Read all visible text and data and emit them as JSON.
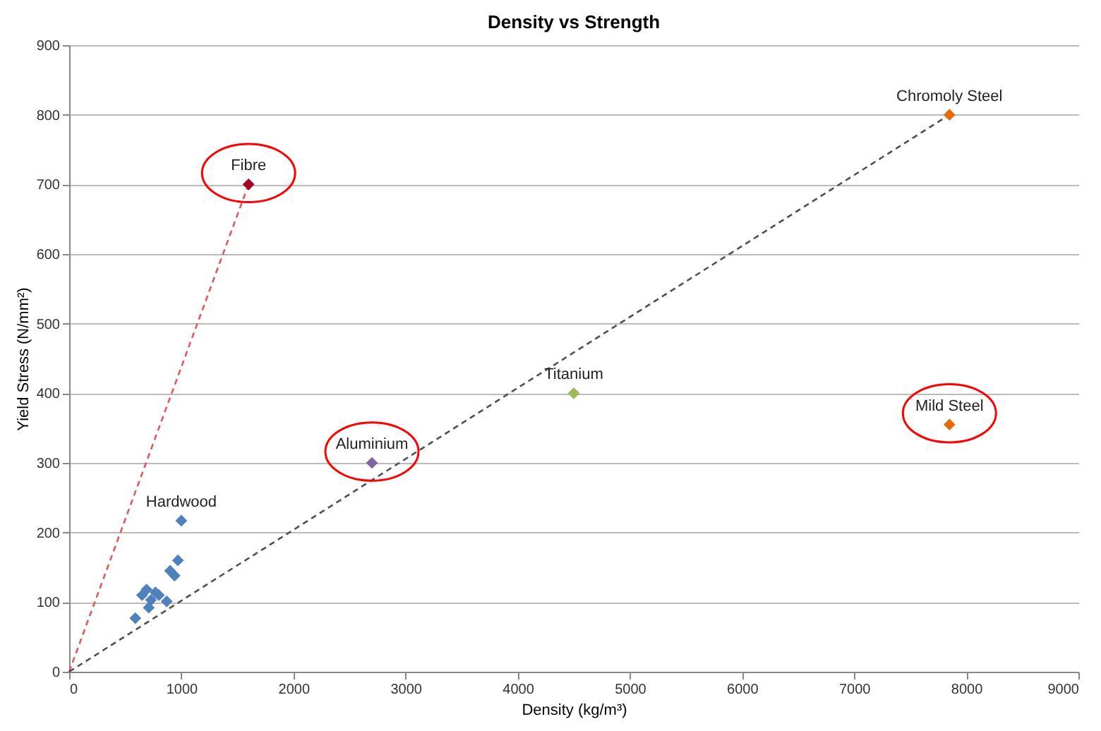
{
  "chart_data": {
    "type": "scatter",
    "title": "Density vs Strength",
    "xlabel": "Density (kg/m³)",
    "ylabel": "Yield Stress (N/mm²)",
    "xlim": [
      0,
      9000
    ],
    "xticks": [
      0,
      1000,
      2000,
      3000,
      4000,
      5000,
      6000,
      7000,
      8000,
      9000
    ],
    "ylim": [
      0,
      900
    ],
    "yticks": [
      0,
      100,
      200,
      300,
      400,
      500,
      600,
      700,
      800,
      900
    ],
    "grid": "y",
    "marker": "diamond",
    "series": [
      {
        "name": "Hardwood",
        "color": "#4f81bd",
        "x": [
          1000,
          970,
          900,
          940,
          690,
          770,
          730,
          710,
          870,
          590,
          650,
          800
        ],
        "values": [
          217,
          160,
          145,
          138,
          118,
          114,
          103,
          92,
          101,
          77,
          110,
          110
        ]
      },
      {
        "type": "line",
        "line_style": "dashed",
        "marker": "none",
        "color": "#e05a5a",
        "x": [
          0,
          1600
        ],
        "values": [
          0,
          700
        ]
      },
      {
        "type": "line",
        "line_style": "dashed",
        "marker": "none",
        "color": "#505050",
        "x": [
          0,
          7850
        ],
        "values": [
          0,
          800
        ]
      },
      {
        "name": "Fibre",
        "color": "#a50021",
        "x": [
          1600
        ],
        "values": [
          700
        ]
      },
      {
        "name": "Chromoly  Steel",
        "color": "#e36c09",
        "x": [
          7850
        ],
        "values": [
          800
        ]
      },
      {
        "name": "Titanium",
        "color": "#9bbb59",
        "x": [
          4500
        ],
        "values": [
          400
        ]
      },
      {
        "name": "Aluminium",
        "color": "#8064a2",
        "x": [
          2700
        ],
        "values": [
          300
        ]
      },
      {
        "name": "Mild Steel",
        "color": "#e36c09",
        "x": [
          7850
        ],
        "values": [
          355
        ]
      }
    ]
  }
}
